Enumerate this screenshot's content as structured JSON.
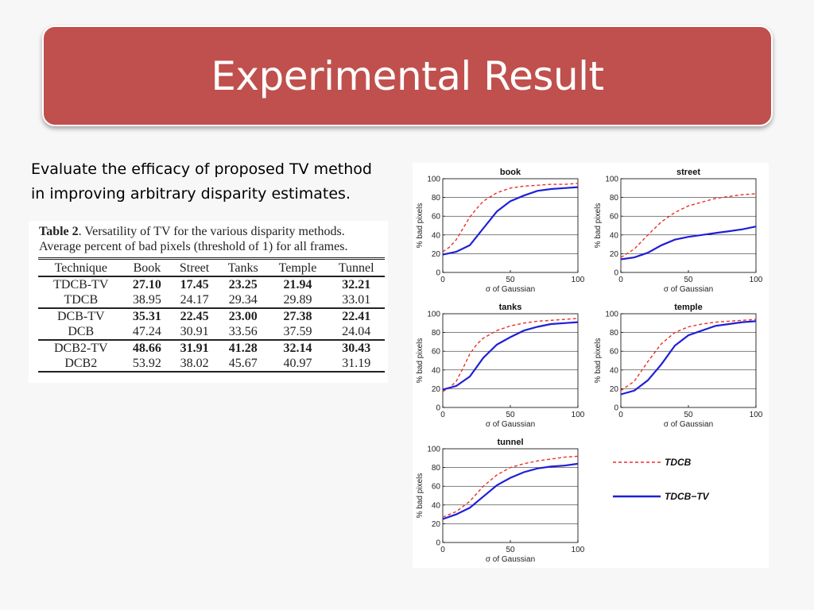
{
  "slide": {
    "title": "Experimental Result",
    "intro_line1": "Evaluate the efficacy of proposed TV method",
    "intro_line2": "in improving arbitrary disparity estimates."
  },
  "table": {
    "caption_label": "Table 2",
    "caption_rest": ".  Versatility of TV for the various disparity methods.",
    "caption_line2": "Average percent of bad pixels (threshold of 1) for all frames.",
    "columns": [
      "Technique",
      "Book",
      "Street",
      "Tanks",
      "Temple",
      "Tunnel"
    ],
    "rows": [
      {
        "cells": [
          "TDCB-TV",
          "27.10",
          "17.45",
          "23.25",
          "21.94",
          "32.21"
        ],
        "bold": true,
        "group_start": true
      },
      {
        "cells": [
          "TDCB",
          "38.95",
          "24.17",
          "29.34",
          "29.89",
          "33.01"
        ],
        "bold": false,
        "group_start": false
      },
      {
        "cells": [
          "DCB-TV",
          "35.31",
          "22.45",
          "23.00",
          "27.38",
          "22.41"
        ],
        "bold": true,
        "group_start": true
      },
      {
        "cells": [
          "DCB",
          "47.24",
          "30.91",
          "33.56",
          "37.59",
          "24.04"
        ],
        "bold": false,
        "group_start": false
      },
      {
        "cells": [
          "DCB2-TV",
          "48.66",
          "31.91",
          "41.28",
          "32.14",
          "30.43"
        ],
        "bold": true,
        "group_start": true
      },
      {
        "cells": [
          "DCB2",
          "53.92",
          "38.02",
          "45.67",
          "40.97",
          "31.19"
        ],
        "bold": false,
        "group_start": false
      }
    ]
  },
  "legend": {
    "entries": [
      {
        "label": "TDCB",
        "color": "#e8302a",
        "style": "dashed"
      },
      {
        "label": "TDCB−TV",
        "color": "#1f1fd8",
        "style": "solid"
      }
    ]
  },
  "chart_data": [
    {
      "type": "line",
      "title": "book",
      "xlabel": "σ of Gaussian",
      "ylabel": "% bad pixels",
      "xlim": [
        0,
        100
      ],
      "ylim": [
        0,
        100
      ],
      "grid": true,
      "xticks": [
        0,
        50,
        100
      ],
      "yticks": [
        0,
        20,
        40,
        60,
        80,
        100
      ],
      "series": [
        {
          "name": "TDCB",
          "x": [
            0,
            5,
            10,
            15,
            20,
            25,
            30,
            40,
            50,
            60,
            70,
            80,
            90,
            100
          ],
          "y": [
            22,
            27,
            35,
            47,
            59,
            68,
            76,
            85,
            90,
            92,
            93,
            94,
            94,
            95
          ]
        },
        {
          "name": "TDCB−TV",
          "x": [
            0,
            10,
            20,
            30,
            40,
            50,
            60,
            70,
            80,
            90,
            100
          ],
          "y": [
            19,
            22,
            29,
            47,
            65,
            76,
            82,
            87,
            89,
            90,
            91
          ]
        }
      ]
    },
    {
      "type": "line",
      "title": "street",
      "xlabel": "σ of Gaussian",
      "ylabel": "% bad pixels",
      "xlim": [
        0,
        100
      ],
      "ylim": [
        0,
        100
      ],
      "grid": true,
      "xticks": [
        0,
        50,
        100
      ],
      "yticks": [
        0,
        20,
        40,
        60,
        80,
        100
      ],
      "series": [
        {
          "name": "TDCB",
          "x": [
            0,
            10,
            20,
            30,
            40,
            50,
            60,
            70,
            80,
            90,
            100
          ],
          "y": [
            16,
            25,
            40,
            54,
            64,
            71,
            75,
            79,
            81,
            83,
            84
          ]
        },
        {
          "name": "TDCB−TV",
          "x": [
            0,
            10,
            20,
            30,
            40,
            50,
            60,
            70,
            80,
            90,
            100
          ],
          "y": [
            14,
            16,
            21,
            29,
            35,
            38,
            40,
            42,
            44,
            46,
            49
          ]
        }
      ]
    },
    {
      "type": "line",
      "title": "tanks",
      "xlabel": "σ of Gaussian",
      "ylabel": "% bad pixels",
      "xlim": [
        0,
        100
      ],
      "ylim": [
        0,
        100
      ],
      "grid": true,
      "xticks": [
        0,
        50,
        100
      ],
      "yticks": [
        0,
        20,
        40,
        60,
        80,
        100
      ],
      "series": [
        {
          "name": "TDCB",
          "x": [
            0,
            5,
            10,
            15,
            20,
            25,
            30,
            40,
            50,
            60,
            70,
            80,
            90,
            100
          ],
          "y": [
            17,
            21,
            28,
            42,
            57,
            67,
            74,
            82,
            87,
            90,
            92,
            93,
            94,
            95
          ]
        },
        {
          "name": "TDCB−TV",
          "x": [
            0,
            10,
            20,
            30,
            40,
            50,
            60,
            70,
            80,
            90,
            100
          ],
          "y": [
            19,
            23,
            33,
            53,
            67,
            75,
            82,
            86,
            89,
            90,
            91
          ]
        }
      ]
    },
    {
      "type": "line",
      "title": "temple",
      "xlabel": "σ of Gaussian",
      "ylabel": "% bad pixels",
      "xlim": [
        0,
        100
      ],
      "ylim": [
        0,
        100
      ],
      "grid": true,
      "xticks": [
        0,
        50,
        100
      ],
      "yticks": [
        0,
        20,
        40,
        60,
        80,
        100
      ],
      "series": [
        {
          "name": "TDCB",
          "x": [
            0,
            10,
            20,
            30,
            40,
            50,
            60,
            70,
            80,
            90,
            100
          ],
          "y": [
            18,
            28,
            49,
            68,
            80,
            86,
            89,
            91,
            92,
            93,
            94
          ]
        },
        {
          "name": "TDCB−TV",
          "x": [
            0,
            10,
            20,
            30,
            40,
            50,
            60,
            70,
            80,
            90,
            100
          ],
          "y": [
            14,
            18,
            29,
            46,
            66,
            77,
            82,
            87,
            89,
            91,
            92
          ]
        }
      ]
    },
    {
      "type": "line",
      "title": "tunnel",
      "xlabel": "σ of Gaussian",
      "ylabel": "% bad pixels",
      "xlim": [
        0,
        100
      ],
      "ylim": [
        0,
        100
      ],
      "grid": true,
      "xticks": [
        0,
        50,
        100
      ],
      "yticks": [
        0,
        20,
        40,
        60,
        80,
        100
      ],
      "series": [
        {
          "name": "TDCB",
          "x": [
            0,
            10,
            20,
            30,
            40,
            50,
            60,
            70,
            80,
            90,
            100
          ],
          "y": [
            27,
            33,
            44,
            60,
            72,
            80,
            84,
            87,
            89,
            91,
            92
          ]
        },
        {
          "name": "TDCB−TV",
          "x": [
            0,
            10,
            20,
            30,
            40,
            50,
            60,
            70,
            80,
            90,
            100
          ],
          "y": [
            25,
            30,
            37,
            49,
            61,
            69,
            75,
            79,
            81,
            82,
            84
          ]
        }
      ]
    }
  ]
}
